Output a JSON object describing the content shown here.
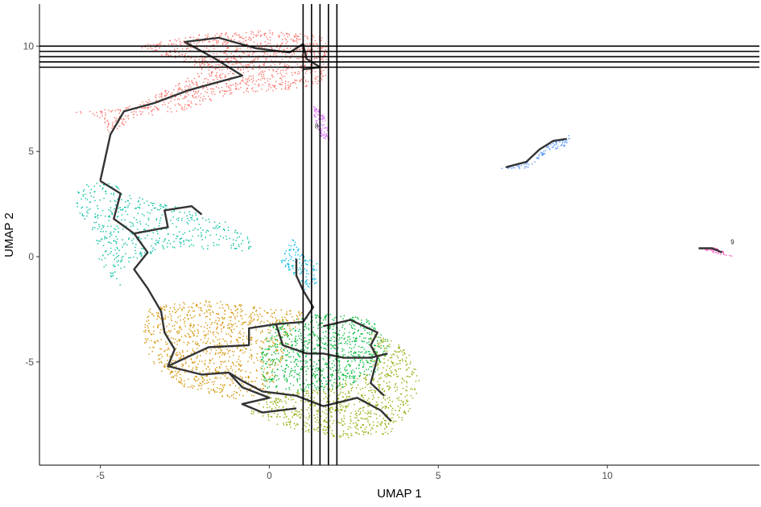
{
  "chart_data": {
    "type": "scatter",
    "xlabel": "UMAP 1",
    "ylabel": "UMAP 2",
    "xlim": [
      -6.8,
      14.5
    ],
    "ylim": [
      -9.9,
      12.0
    ],
    "x_ticks": [
      -5,
      0,
      5,
      10
    ],
    "y_ticks": [
      -5,
      0,
      5,
      10
    ],
    "x_tick_labels": [
      "-5",
      "0",
      "5",
      "10"
    ],
    "y_tick_labels": [
      "-5",
      "0",
      "5",
      "10"
    ],
    "grid": false,
    "legend": "none",
    "reference_lines": {
      "vertical_x": [
        1.0,
        1.25,
        1.5,
        1.75,
        2.0
      ],
      "horizontal_y": [
        9.0,
        9.25,
        9.5,
        9.75,
        10.0
      ]
    },
    "clusters": [
      {
        "id": "1",
        "color": "#F8766D",
        "label": "",
        "outline": [
          [
            -4.0,
            7.2
          ],
          [
            -3.0,
            8.0
          ],
          [
            -2.0,
            9.0
          ],
          [
            -4.0,
            10.0
          ],
          [
            -2.0,
            10.6
          ],
          [
            0.0,
            10.8
          ],
          [
            1.6,
            10.5
          ],
          [
            1.8,
            9.4
          ],
          [
            1.6,
            8.3
          ],
          [
            0.5,
            7.9
          ],
          [
            -1.0,
            7.8
          ],
          [
            -2.5,
            7.0
          ],
          [
            -4.0,
            6.6
          ],
          [
            -4.8,
            5.8
          ],
          [
            -5.0,
            6.6
          ],
          [
            -5.8,
            6.9
          ],
          [
            -5.0,
            7.0
          ]
        ],
        "n": 1200
      },
      {
        "id": "2",
        "color": "#00BFA0",
        "label": "",
        "outline": [
          [
            -5.8,
            2.6
          ],
          [
            -5.6,
            3.4
          ],
          [
            -4.8,
            3.6
          ],
          [
            -3.8,
            2.8
          ],
          [
            -2.6,
            2.4
          ],
          [
            -1.4,
            1.8
          ],
          [
            -0.6,
            1.0
          ],
          [
            -0.5,
            0.2
          ],
          [
            -2.0,
            0.4
          ],
          [
            -3.2,
            0.4
          ],
          [
            -4.0,
            -0.2
          ],
          [
            -4.5,
            -0.8
          ],
          [
            -4.4,
            -1.5
          ],
          [
            -5.0,
            -0.4
          ],
          [
            -5.2,
            0.8
          ],
          [
            -5.6,
            2.0
          ]
        ],
        "n": 500
      },
      {
        "id": "3",
        "color": "#D39200",
        "label": "",
        "outline": [
          [
            -3.6,
            -2.4
          ],
          [
            -2.0,
            -2.0
          ],
          [
            0.0,
            -2.4
          ],
          [
            1.0,
            -2.6
          ],
          [
            0.6,
            -4.0
          ],
          [
            0.0,
            -6.4
          ],
          [
            -1.0,
            -6.8
          ],
          [
            -2.5,
            -6.2
          ],
          [
            -3.4,
            -5.2
          ],
          [
            -3.8,
            -4.0
          ]
        ],
        "n": 1000
      },
      {
        "id": "4",
        "color": "#00BA38",
        "label": "",
        "outline": [
          [
            0.0,
            -3.2
          ],
          [
            1.0,
            -2.8
          ],
          [
            2.0,
            -2.6
          ],
          [
            3.0,
            -3.0
          ],
          [
            3.6,
            -4.0
          ],
          [
            3.2,
            -5.4
          ],
          [
            2.2,
            -6.2
          ],
          [
            1.0,
            -6.4
          ],
          [
            -0.2,
            -6.2
          ],
          [
            -0.3,
            -4.6
          ]
        ],
        "n": 900
      },
      {
        "id": "5",
        "color": "#93AA00",
        "label": "",
        "outline": [
          [
            3.0,
            -3.4
          ],
          [
            4.0,
            -4.2
          ],
          [
            4.5,
            -5.6
          ],
          [
            4.2,
            -7.2
          ],
          [
            3.6,
            -8.4
          ],
          [
            2.2,
            -8.6
          ],
          [
            0.6,
            -8.2
          ],
          [
            -0.6,
            -7.4
          ],
          [
            0.0,
            -6.4
          ],
          [
            1.5,
            -6.2
          ],
          [
            3.0,
            -5.4
          ]
        ],
        "n": 800
      },
      {
        "id": "6",
        "color": "#00B9E3",
        "label": "",
        "outline": [
          [
            0.7,
            1.0
          ],
          [
            0.9,
            0.2
          ],
          [
            1.4,
            -0.3
          ],
          [
            1.4,
            -1.2
          ],
          [
            1.0,
            -1.6
          ],
          [
            0.8,
            -1.0
          ],
          [
            0.3,
            -0.2
          ]
        ],
        "n": 130
      },
      {
        "id": "7",
        "color": "#619CFF",
        "label": "",
        "outline": [
          [
            7.0,
            4.3
          ],
          [
            7.8,
            4.6
          ],
          [
            8.3,
            5.5
          ],
          [
            8.9,
            5.8
          ],
          [
            8.8,
            5.3
          ],
          [
            8.2,
            5.0
          ],
          [
            7.6,
            4.2
          ],
          [
            6.8,
            4.2
          ]
        ],
        "n": 110
      },
      {
        "id": "8",
        "color": "#DB72FB",
        "label": "8",
        "outline": [
          [
            1.3,
            7.2
          ],
          [
            1.6,
            6.8
          ],
          [
            1.8,
            5.6
          ],
          [
            1.6,
            5.4
          ],
          [
            1.4,
            6.2
          ],
          [
            1.3,
            6.8
          ]
        ],
        "n": 90
      },
      {
        "id": "9",
        "color": "#FF61C3",
        "label": "9",
        "outline": [
          [
            12.6,
            0.45
          ],
          [
            13.2,
            0.45
          ],
          [
            13.7,
            0.05
          ],
          [
            13.4,
            0.1
          ],
          [
            13.0,
            0.3
          ]
        ],
        "n": 55
      }
    ],
    "trajectory": [
      [
        [
          -5.0,
          3.6
        ],
        [
          -4.7,
          5.8
        ],
        [
          -4.3,
          6.9
        ],
        [
          -3.4,
          7.3
        ],
        [
          -2.4,
          7.9
        ],
        [
          -1.5,
          8.3
        ],
        [
          -0.8,
          8.6
        ],
        [
          -1.6,
          9.4
        ],
        [
          -2.5,
          10.2
        ],
        [
          -1.5,
          10.4
        ],
        [
          -0.4,
          9.9
        ],
        [
          0.6,
          9.7
        ],
        [
          1.0,
          10.1
        ],
        [
          1.1,
          9.4
        ],
        [
          1.5,
          9.0
        ],
        [
          1.0,
          8.9
        ]
      ],
      [
        [
          -5.0,
          3.6
        ],
        [
          -4.4,
          3.0
        ],
        [
          -4.6,
          1.8
        ],
        [
          -4.0,
          1.1
        ],
        [
          -3.6,
          0.2
        ],
        [
          -4.0,
          -0.6
        ],
        [
          -3.6,
          -1.5
        ],
        [
          -3.2,
          -2.6
        ],
        [
          -3.1,
          -3.6
        ],
        [
          -2.8,
          -4.4
        ],
        [
          -3.0,
          -5.2
        ],
        [
          -2.0,
          -5.6
        ],
        [
          -1.2,
          -5.5
        ],
        [
          -0.8,
          -5.9
        ],
        [
          -0.2,
          -6.4
        ],
        [
          0.8,
          -6.6
        ],
        [
          1.6,
          -7.1
        ],
        [
          2.6,
          -6.7
        ],
        [
          3.3,
          -7.3
        ],
        [
          3.6,
          -7.8
        ]
      ],
      [
        [
          -4.0,
          1.1
        ],
        [
          -3.0,
          1.4
        ],
        [
          -3.1,
          2.2
        ],
        [
          -2.3,
          2.4
        ],
        [
          -2.0,
          2.0
        ]
      ],
      [
        [
          -3.0,
          -5.2
        ],
        [
          -1.8,
          -4.3
        ],
        [
          -0.6,
          -4.2
        ],
        [
          -0.6,
          -3.4
        ],
        [
          0.2,
          -3.2
        ],
        [
          1.0,
          -3.1
        ],
        [
          1.3,
          -2.4
        ],
        [
          1.0,
          -1.6
        ],
        [
          0.8,
          -0.9
        ],
        [
          0.8,
          -0.1
        ]
      ],
      [
        [
          0.2,
          -3.2
        ],
        [
          0.4,
          -4.2
        ],
        [
          1.1,
          -4.6
        ],
        [
          1.6,
          -4.6
        ],
        [
          2.2,
          -4.8
        ],
        [
          3.0,
          -4.8
        ],
        [
          3.5,
          -4.6
        ]
      ],
      [
        [
          1.6,
          -3.3
        ],
        [
          2.4,
          -3.0
        ],
        [
          3.2,
          -3.6
        ],
        [
          3.0,
          -4.2
        ],
        [
          3.2,
          -4.8
        ],
        [
          3.0,
          -6.0
        ],
        [
          3.4,
          -6.6
        ]
      ],
      [
        [
          -1.2,
          -5.5
        ],
        [
          -0.8,
          -6.2
        ],
        [
          0.0,
          -6.7
        ],
        [
          -0.8,
          -7.0
        ],
        [
          -0.2,
          -7.4
        ],
        [
          0.8,
          -7.2
        ]
      ],
      [
        [
          7.0,
          4.25
        ],
        [
          7.6,
          4.5
        ],
        [
          8.0,
          5.1
        ],
        [
          8.4,
          5.5
        ],
        [
          8.8,
          5.6
        ]
      ],
      [
        [
          12.7,
          0.4
        ],
        [
          13.1,
          0.4
        ],
        [
          13.4,
          0.2
        ]
      ]
    ],
    "label_positions": [
      {
        "id": "8",
        "x": 1.4,
        "y": 6.1
      },
      {
        "id": "9",
        "x": 13.7,
        "y": 0.6
      }
    ]
  }
}
